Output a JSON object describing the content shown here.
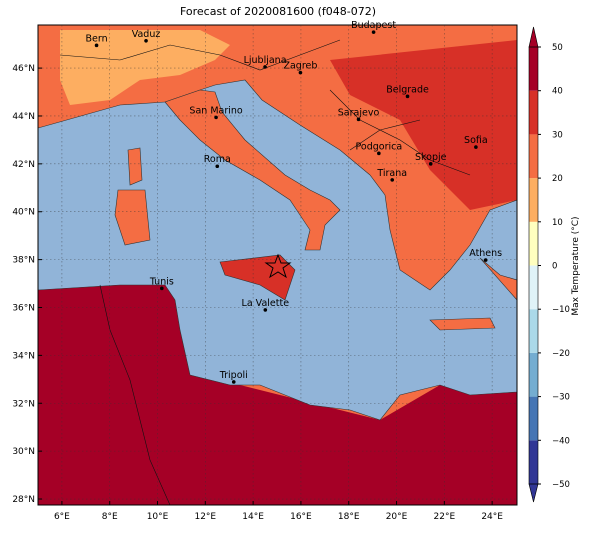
{
  "chart_data": {
    "type": "map",
    "title": "Forecast of 2020081600 (f048-072)",
    "xlim": [
      5,
      25.04
    ],
    "ylim": [
      27.75,
      47.8
    ],
    "xticks": [
      {
        "value": 6,
        "label": "6°E"
      },
      {
        "value": 8,
        "label": "8°E"
      },
      {
        "value": 10,
        "label": "10°E"
      },
      {
        "value": 12,
        "label": "12°E"
      },
      {
        "value": 14,
        "label": "14°E"
      },
      {
        "value": 16,
        "label": "16°E"
      },
      {
        "value": 18,
        "label": "18°E"
      },
      {
        "value": 20,
        "label": "20°E"
      },
      {
        "value": 22,
        "label": "22°E"
      },
      {
        "value": 24,
        "label": "24°E"
      }
    ],
    "yticks": [
      {
        "value": 28,
        "label": "28°N"
      },
      {
        "value": 30,
        "label": "30°N"
      },
      {
        "value": 32,
        "label": "32°N"
      },
      {
        "value": 34,
        "label": "34°N"
      },
      {
        "value": 36,
        "label": "36°N"
      },
      {
        "value": 38,
        "label": "38°N"
      },
      {
        "value": 40,
        "label": "40°N"
      },
      {
        "value": 42,
        "label": "42°N"
      },
      {
        "value": 44,
        "label": "44°N"
      },
      {
        "value": 46,
        "label": "46°N"
      }
    ],
    "grid": true,
    "cities": [
      {
        "name": "Bern",
        "lon": 7.45,
        "lat": 46.95
      },
      {
        "name": "Vaduz",
        "lon": 9.52,
        "lat": 47.14
      },
      {
        "name": "Budapest",
        "lon": 19.04,
        "lat": 47.5
      },
      {
        "name": "Ljubljana",
        "lon": 14.5,
        "lat": 46.05
      },
      {
        "name": "Zagreb",
        "lon": 15.98,
        "lat": 45.81
      },
      {
        "name": "Belgrade",
        "lon": 20.46,
        "lat": 44.82
      },
      {
        "name": "San Marino",
        "lon": 12.45,
        "lat": 43.94
      },
      {
        "name": "Sarajevo",
        "lon": 18.41,
        "lat": 43.86
      },
      {
        "name": "Sofia",
        "lon": 23.32,
        "lat": 42.7
      },
      {
        "name": "Podgorica",
        "lon": 19.26,
        "lat": 42.44
      },
      {
        "name": "Skopje",
        "lon": 21.43,
        "lat": 42.0
      },
      {
        "name": "Roma",
        "lon": 12.5,
        "lat": 41.9
      },
      {
        "name": "Tirana",
        "lon": 19.82,
        "lat": 41.33
      },
      {
        "name": "Athens",
        "lon": 23.73,
        "lat": 37.98
      },
      {
        "name": "Tunis",
        "lon": 10.18,
        "lat": 36.8
      },
      {
        "name": "La Valette",
        "lon": 14.51,
        "lat": 35.9
      },
      {
        "name": "Tripoli",
        "lon": 13.19,
        "lat": 32.89
      }
    ],
    "colorbar": {
      "label": "Max Temperature (°C)",
      "levels": [
        -50,
        -40,
        -30,
        -20,
        -10,
        0,
        10,
        20,
        30,
        40,
        50
      ],
      "colors": [
        "#313695",
        "#4575b4",
        "#74add1",
        "#abd9e9",
        "#e0f3f8",
        "#ffffbf",
        "#fdae61",
        "#f46d43",
        "#d73027",
        "#a50026"
      ],
      "ticks": [
        {
          "value": -50,
          "label": "−50"
        },
        {
          "value": -40,
          "label": "−40"
        },
        {
          "value": -30,
          "label": "−30"
        },
        {
          "value": -20,
          "label": "−20"
        },
        {
          "value": -10,
          "label": "−10"
        },
        0,
        10,
        20,
        30,
        40,
        50
      ]
    }
  }
}
